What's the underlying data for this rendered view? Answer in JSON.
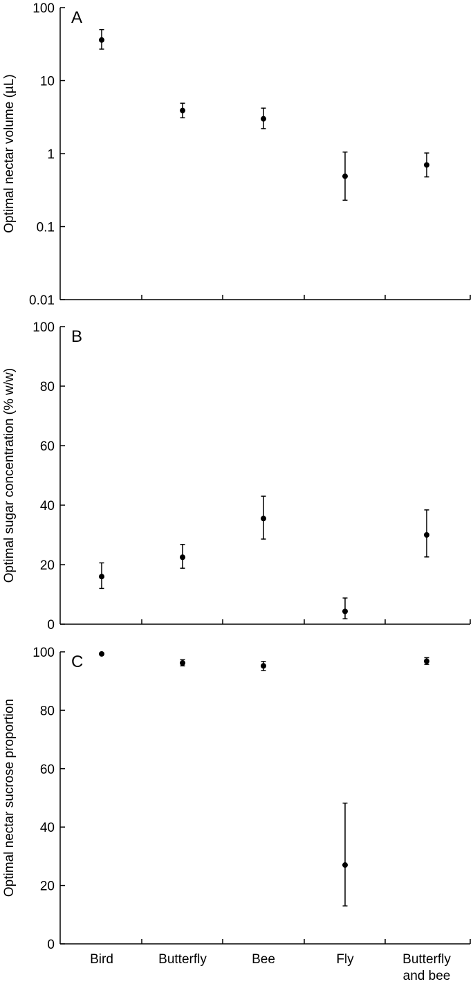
{
  "chart_data": {
    "categories": [
      "Bird",
      "Butterfly",
      "Bee",
      "Fly",
      "Butterfly and bee"
    ],
    "category_labels": [
      [
        "Bird"
      ],
      [
        "Butterfly"
      ],
      [
        "Bee"
      ],
      [
        "Fly"
      ],
      [
        "Butterfly",
        "and bee"
      ]
    ],
    "panels": [
      {
        "panel": "A",
        "type": "scatter",
        "ylabel": "Optimal nectar volume (µL)",
        "yscale": "log",
        "ylim": [
          0.01,
          100
        ],
        "yticks": [
          0.01,
          0.1,
          1,
          10,
          100
        ],
        "ytick_labels": [
          "0.01",
          "0.1",
          "1",
          "10",
          "100"
        ],
        "series": [
          {
            "values": [
              36,
              3.9,
              3.0,
              0.49,
              0.7
            ],
            "err_low": [
              27,
              3.1,
              2.2,
              0.23,
              0.48
            ],
            "err_high": [
              50,
              4.9,
              4.2,
              1.05,
              1.02
            ]
          }
        ]
      },
      {
        "panel": "B",
        "type": "scatter",
        "ylabel": "Optimal sugar concentration (% w/w)",
        "yscale": "linear",
        "ylim": [
          0,
          100
        ],
        "yticks": [
          0,
          20,
          40,
          60,
          80,
          100
        ],
        "ytick_labels": [
          "0",
          "20",
          "40",
          "60",
          "80",
          "100"
        ],
        "series": [
          {
            "values": [
              16,
              22.5,
              35.5,
              4.3,
              30
            ],
            "err_low": [
              12,
              18.8,
              28.6,
              1.8,
              22.6
            ],
            "err_high": [
              20.6,
              26.8,
              43,
              8.8,
              38.4
            ]
          }
        ]
      },
      {
        "panel": "C",
        "type": "scatter",
        "ylabel": "Optimal nectar sucrose proportion",
        "yscale": "linear",
        "ylim": [
          0,
          100
        ],
        "yticks": [
          0,
          20,
          40,
          60,
          80,
          100
        ],
        "ytick_labels": [
          "0",
          "20",
          "40",
          "60",
          "80",
          "100"
        ],
        "series": [
          {
            "values": [
              99.3,
              96.2,
              95.2,
              27,
              96.8
            ],
            "err_low": [
              99.3,
              95.2,
              93.6,
              13,
              95.7
            ],
            "err_high": [
              99.3,
              97.3,
              96.7,
              48.2,
              98.0
            ]
          }
        ]
      }
    ]
  }
}
